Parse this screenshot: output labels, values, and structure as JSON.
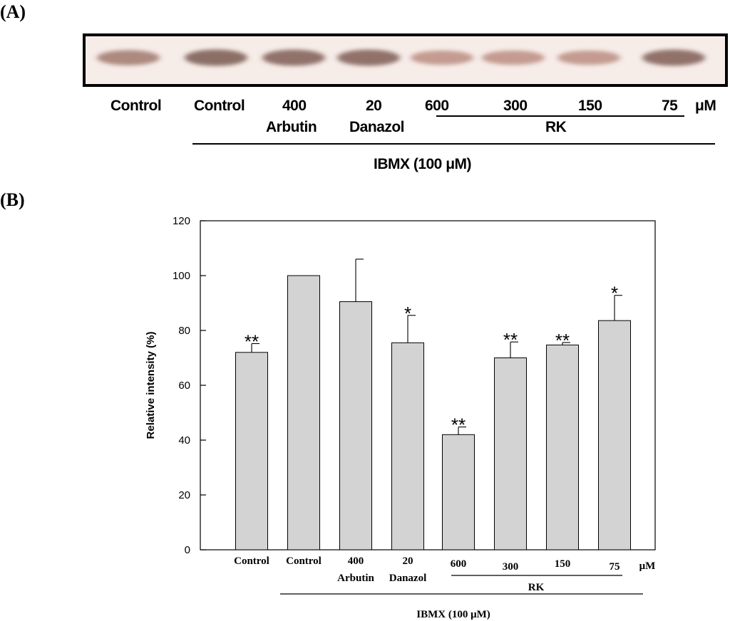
{
  "panel_a": {
    "label": "(A)",
    "lane_labels": [
      "Control",
      "Control",
      "400",
      "20",
      "600",
      "300",
      "150",
      "75",
      "μM"
    ],
    "sub_labels": [
      "Arbutin",
      "Danazol",
      "RK"
    ],
    "group_label": "IBMX (100 μM)",
    "band_intensity": [
      0.55,
      0.85,
      0.8,
      0.8,
      0.35,
      0.35,
      0.35,
      0.8
    ]
  },
  "panel_b": {
    "label": "(B)"
  },
  "chart_data": {
    "type": "bar",
    "categories": [
      "Control",
      "Control",
      "400 Arbutin",
      "20 Danazol",
      "600",
      "300",
      "150",
      "75"
    ],
    "values": [
      72,
      100,
      90.5,
      75.5,
      42,
      70,
      74.7,
      83.6
    ],
    "errors": [
      3.2,
      0,
      15.5,
      10,
      2.8,
      5.8,
      0.9,
      9.2
    ],
    "significance": [
      "**",
      "",
      "",
      "*",
      "**",
      "**",
      "**",
      "*"
    ],
    "tick_line1": [
      "Control",
      "Control",
      "400",
      "20",
      "600",
      "300",
      "150",
      "75"
    ],
    "tick_line2": [
      "",
      "",
      "Arbutin",
      "Danazol",
      "",
      "",
      "",
      ""
    ],
    "unit_label": "μM",
    "group_sub_label": "RK",
    "group_label": "IBMX (100 μM)",
    "ylabel": "Relative intensity (%)",
    "ylim": [
      0,
      120
    ],
    "yticks": [
      0,
      20,
      40,
      60,
      80,
      100,
      120
    ],
    "bar_color": "#d3d3d3",
    "grid": false
  }
}
